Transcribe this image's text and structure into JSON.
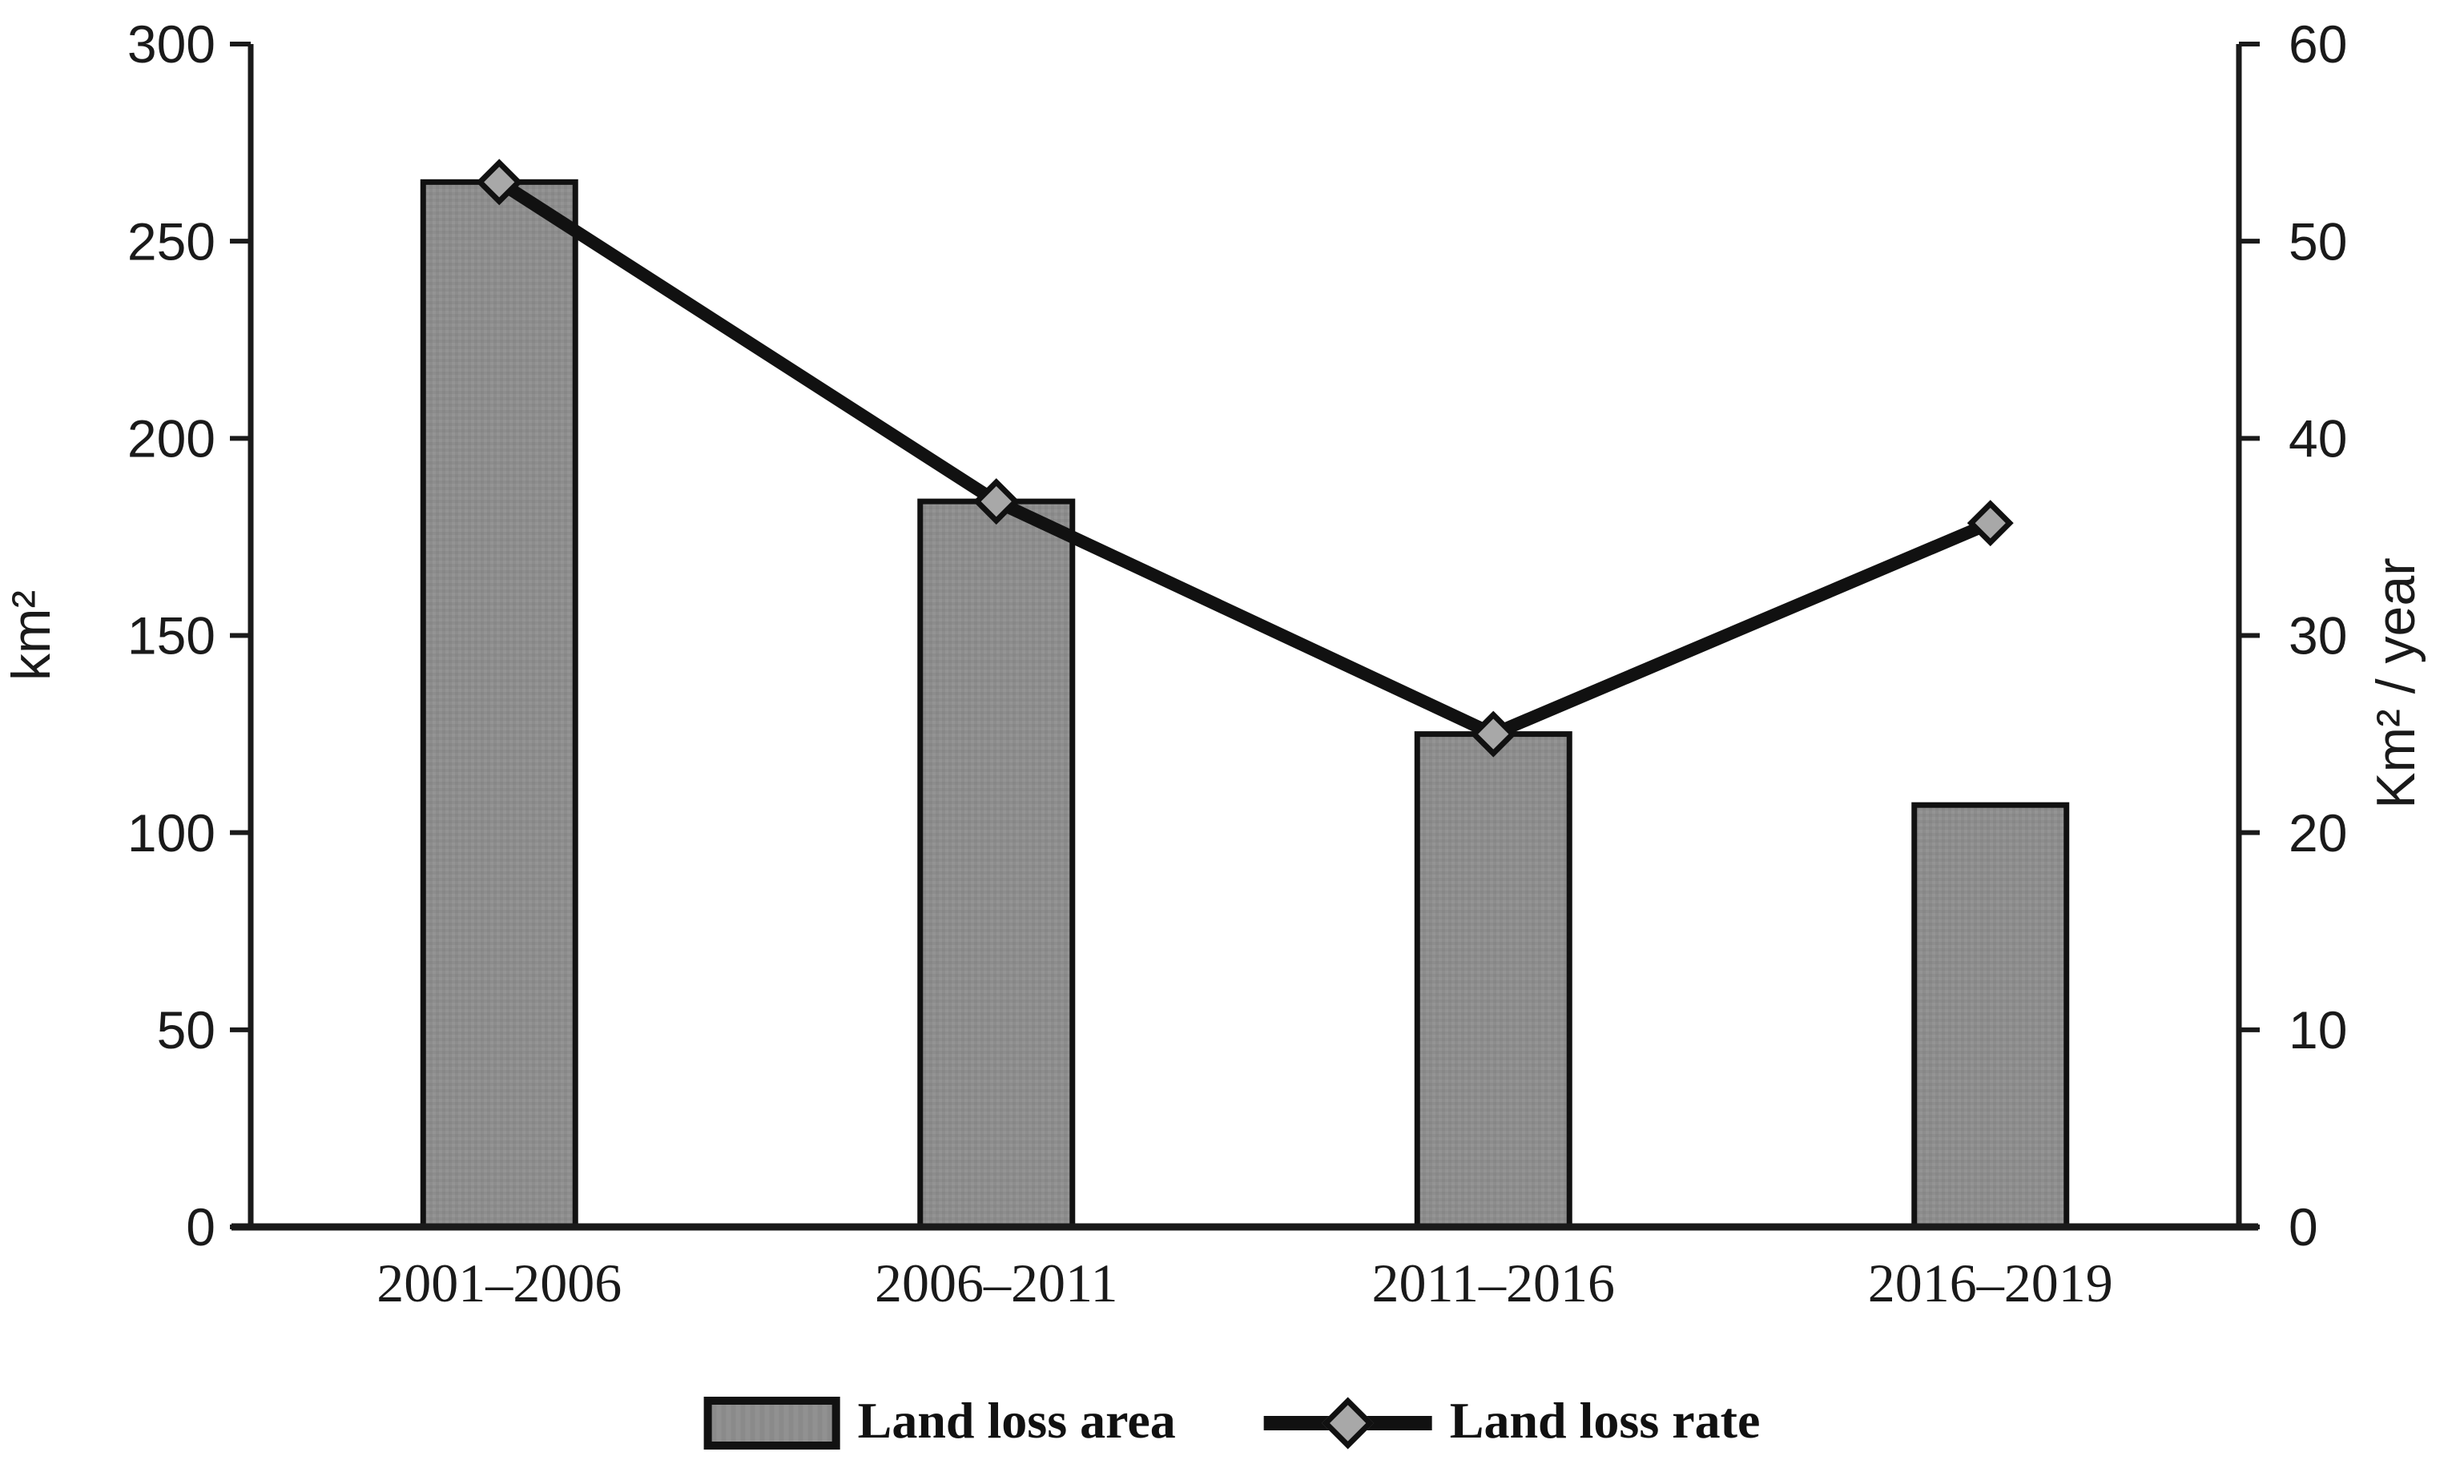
{
  "chart_data": {
    "type": "combo",
    "categories": [
      "2001–2006",
      "2006–2011",
      "2011–2016",
      "2016–2019"
    ],
    "series": [
      {
        "name": "Land loss area",
        "chart_type": "bar",
        "axis": "left",
        "values": [
          265,
          184,
          125,
          107
        ]
      },
      {
        "name": "Land loss rate",
        "chart_type": "line",
        "axis": "right",
        "values": [
          53,
          36.8,
          25,
          35.7
        ]
      }
    ],
    "left_axis": {
      "label": "km²",
      "min": 0,
      "max": 300,
      "step": 50,
      "tick_labels": [
        "0",
        "50",
        "100",
        "150",
        "200",
        "250",
        "300"
      ]
    },
    "right_axis": {
      "label": "Km² / year",
      "min": 0,
      "max": 60,
      "step": 10,
      "tick_labels": [
        "0",
        "10",
        "20",
        "30",
        "40",
        "50",
        "60"
      ]
    },
    "legend_position": "bottom-center",
    "grid": "off",
    "title": ""
  },
  "colors": {
    "bar_fill": "#8d8d8d",
    "bar_stroke": "#111111",
    "line": "#111111",
    "marker_fill": "#a8a8a8",
    "marker_stroke": "#111111",
    "axis": "#1a1a1a",
    "text": "#1a1a1a",
    "background": "#ffffff"
  }
}
